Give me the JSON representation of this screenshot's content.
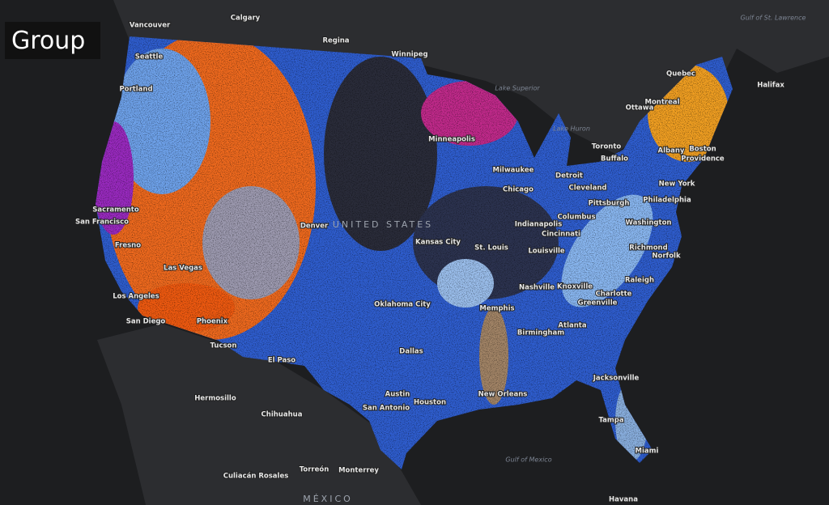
{
  "label": "Group",
  "places": [
    "Vancouver",
    "Calgary",
    "Regina",
    "Winnipeg",
    "Seattle",
    "Portland",
    "Sacramento",
    "San Francisco",
    "Fresno",
    "Las Vegas",
    "Los Angeles",
    "San Diego",
    "Phoenix",
    "Tucson",
    "El Paso",
    "Denver",
    "Kansas City",
    "Oklahoma City",
    "Dallas",
    "Austin",
    "San Antonio",
    "Houston",
    "Minneapolis",
    "Milwaukee",
    "Chicago",
    "Detroit",
    "Cleveland",
    "Indianapolis",
    "Columbus",
    "Cincinnati",
    "St. Louis",
    "Louisville",
    "Nashville",
    "Memphis",
    "Birmingham",
    "Atlanta",
    "Knoxville",
    "Charlotte",
    "Greenville",
    "Raleigh",
    "Richmond",
    "Norfolk",
    "Washington",
    "Pittsburgh",
    "Philadelphia",
    "New York",
    "Albany",
    "Boston",
    "Providence",
    "Buffalo",
    "Toronto",
    "Ottawa",
    "Montreal",
    "Quebec",
    "Halifax",
    "Jacksonville",
    "Tampa",
    "Miami",
    "New Orleans",
    "Hermosillo",
    "Chihuahua",
    "Culiacán Rosales",
    "Torreón",
    "Monterrey",
    "Havana",
    "MÉXICO",
    "UNITED STATES",
    "Gulf of Mexico",
    "Lake Superior",
    "Lake Huron",
    "Gulf of St. Lawrence"
  ]
}
